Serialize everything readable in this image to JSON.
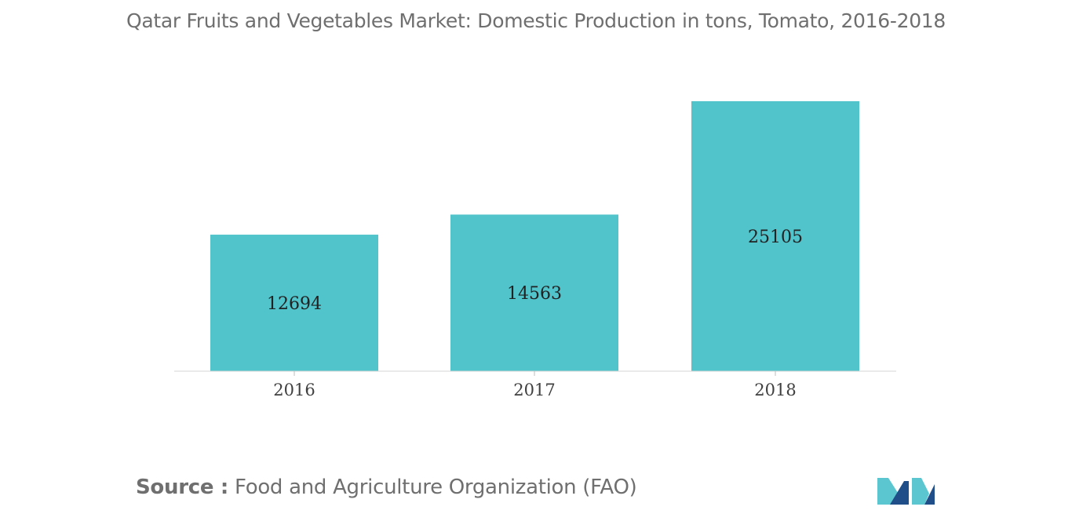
{
  "chart_data": {
    "type": "bar",
    "title": "Qatar Fruits and Vegetables Market: Domestic Production in tons, Tomato, 2016-2018",
    "categories": [
      "2016",
      "2017",
      "2018"
    ],
    "values": [
      12694,
      14563,
      25105
    ],
    "data_labels": [
      "12694",
      "14563",
      "25105"
    ],
    "xlabel": "",
    "ylabel": "",
    "ylim": [
      0,
      26000
    ],
    "grid": false,
    "legend": "none",
    "bar_color": "#50c3cb"
  },
  "footer": {
    "source_prefix": "Source :",
    "source_text": " Food and Agriculture Organization (FAO)"
  },
  "logo": {
    "icon": "mordor-intelligence-logo-icon",
    "colors": [
      "#1f4e89",
      "#5bc5d0"
    ]
  }
}
